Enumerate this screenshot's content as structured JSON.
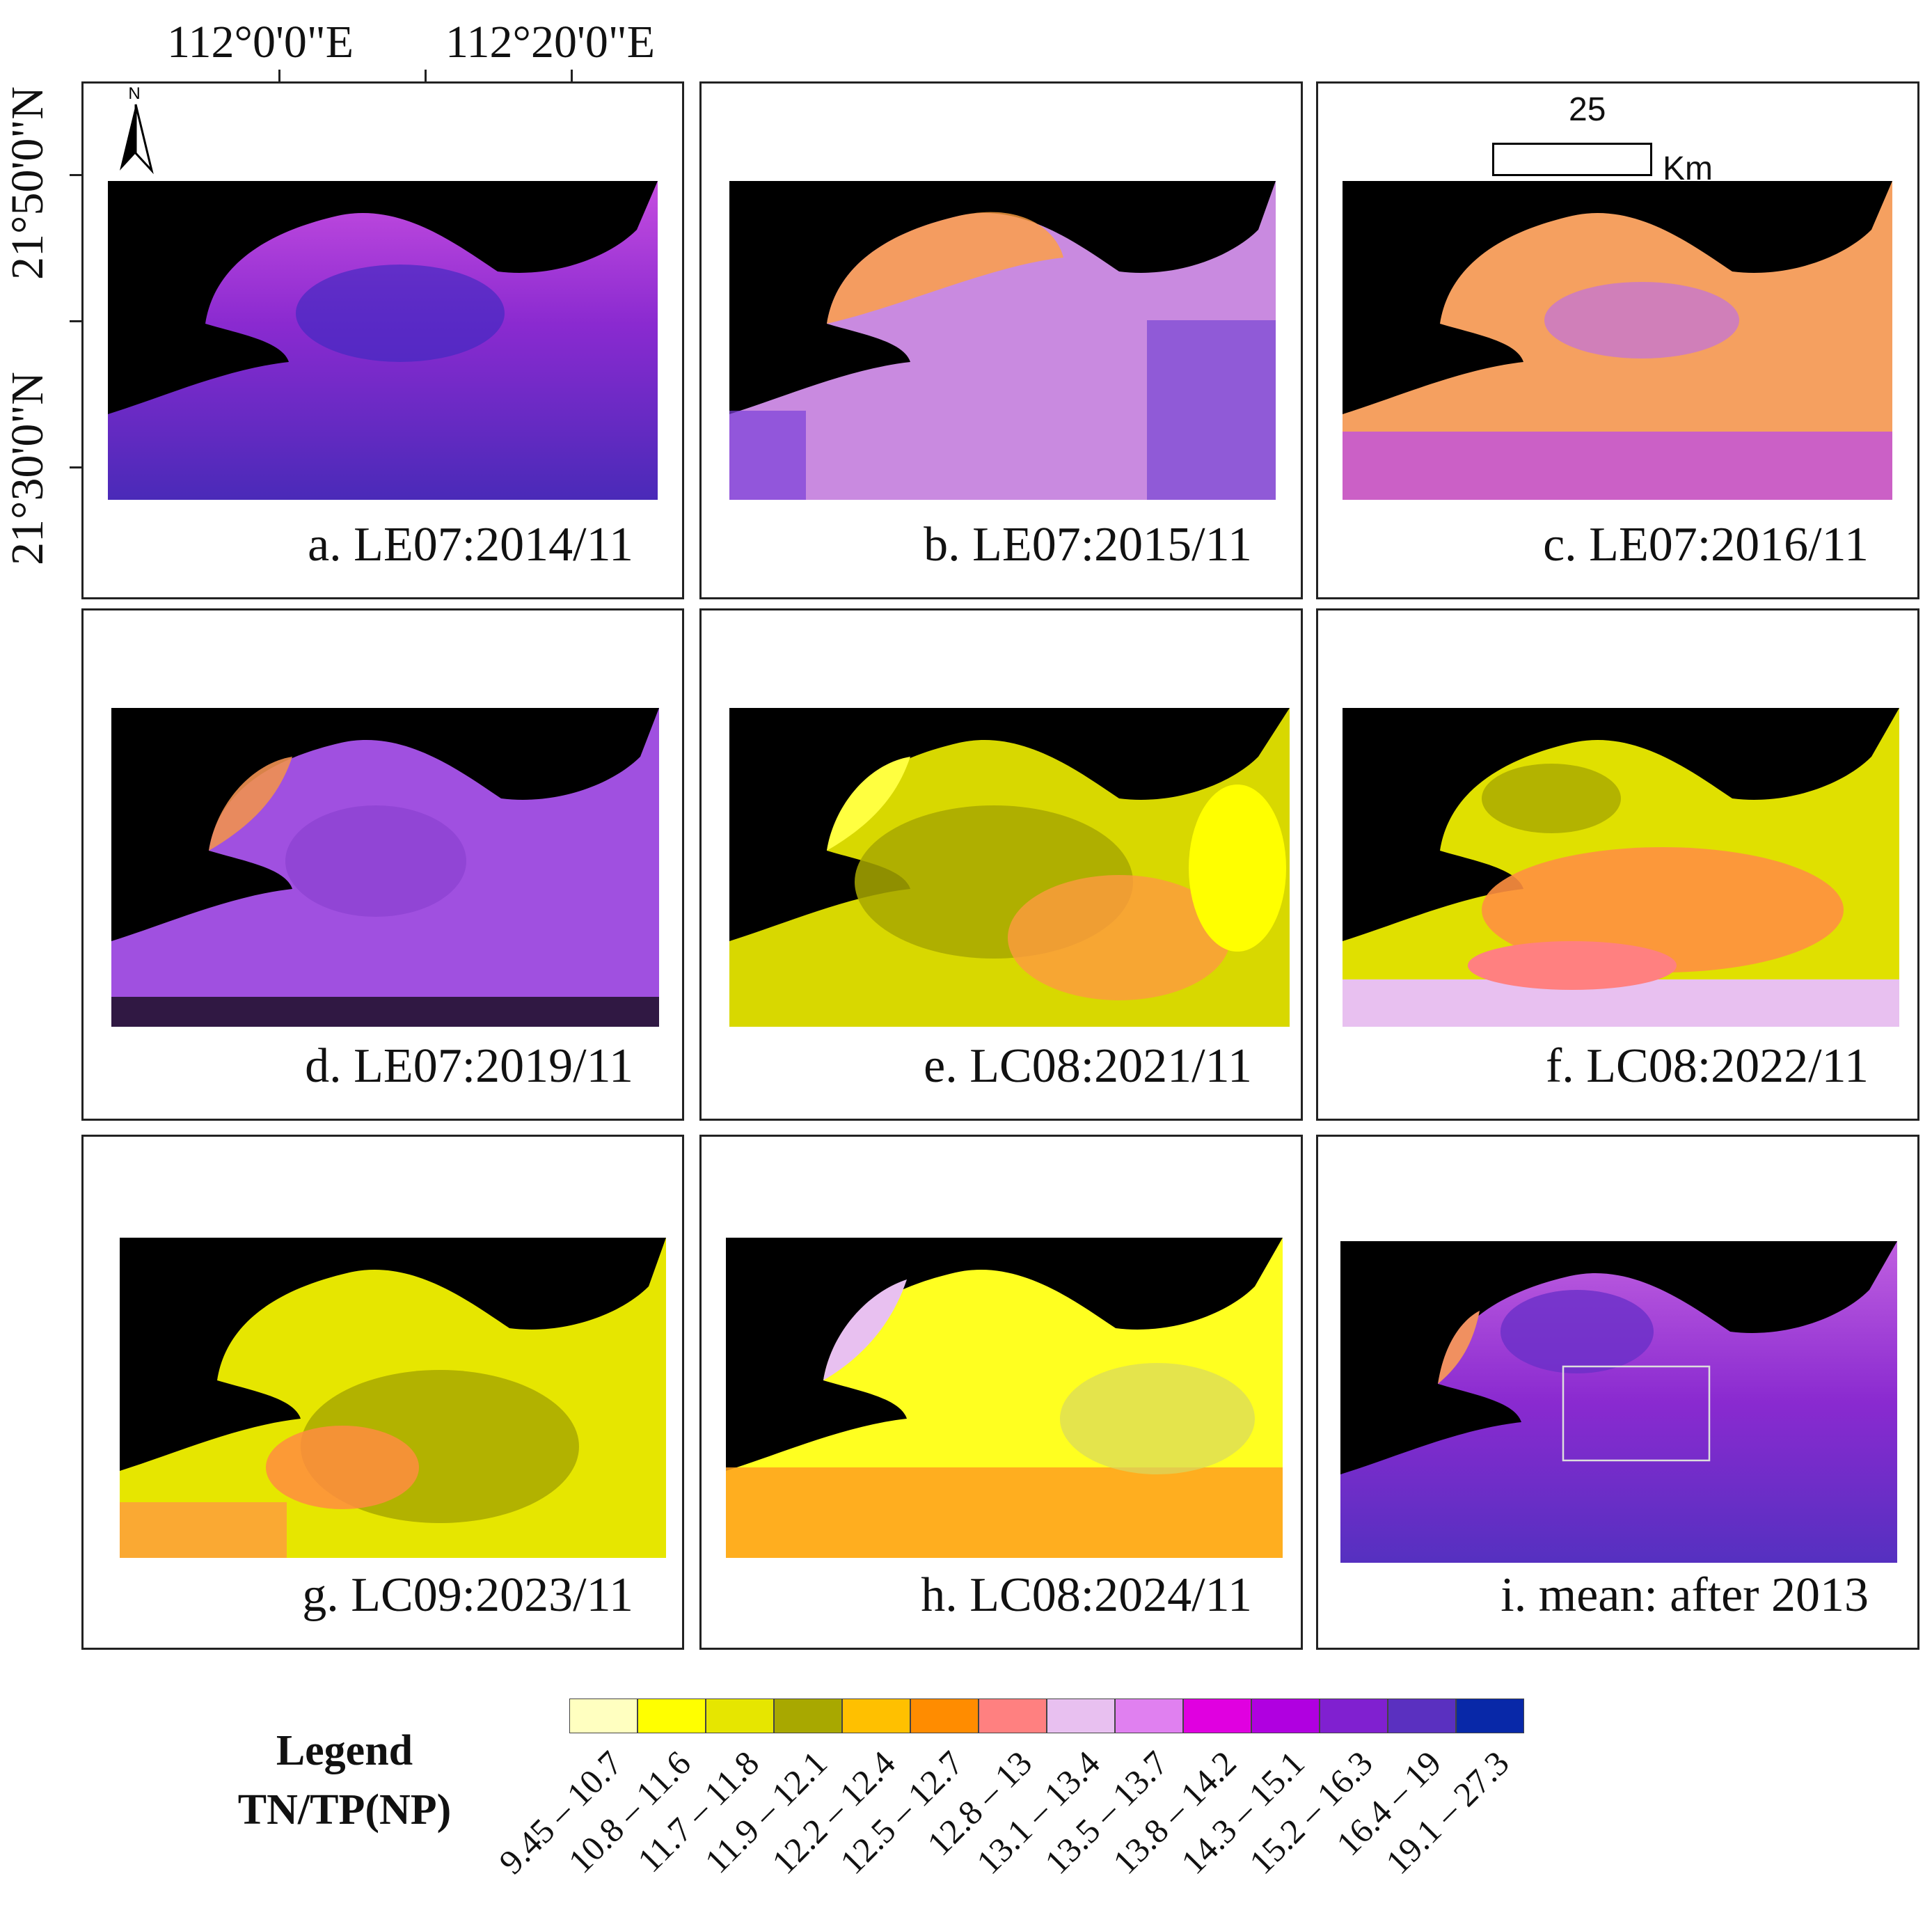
{
  "top_axis_labels": [
    "112°0'0\"E",
    "112°20'0\"E"
  ],
  "left_axis_labels": [
    "21°50'0\"N",
    "21°30'0\"N"
  ],
  "north_label": "N",
  "scalebar": {
    "value": "25",
    "unit": "Km"
  },
  "panels": [
    {
      "label": "a.  LE07:2014/11",
      "palette": "violet"
    },
    {
      "label": "b.  LE07:2015/11",
      "palette": "violet-orange"
    },
    {
      "label": "c.  LE07:2016/11",
      "palette": "orange-violet"
    },
    {
      "label": "d.  LE07:2019/11",
      "palette": "violet"
    },
    {
      "label": "e.  LC08:2021/11",
      "palette": "yellow"
    },
    {
      "label": "f.  LC08:2022/11",
      "palette": "yellow-orange"
    },
    {
      "label": "g.  LC09:2023/11",
      "palette": "yellow"
    },
    {
      "label": "h.  LC08:2024/11",
      "palette": "yellow"
    },
    {
      "label": "i.  mean: after 2013",
      "palette": "violet"
    }
  ],
  "legend": {
    "title_line1": "Legend",
    "title_line2": "TN/TP(NP)",
    "classes": [
      {
        "range": "9.45 – 10.7",
        "color": "#FFFFC0"
      },
      {
        "range": "10.8 – 11.6",
        "color": "#FFFF00"
      },
      {
        "range": "11.7 – 11.8",
        "color": "#E6E600"
      },
      {
        "range": "11.9 – 12.1",
        "color": "#A8A800"
      },
      {
        "range": "12.2 – 12.4",
        "color": "#FFC000"
      },
      {
        "range": "12.5 – 12.7",
        "color": "#FF8C00"
      },
      {
        "range": "12.8 – 13",
        "color": "#FF8080"
      },
      {
        "range": "13.1 – 13.4",
        "color": "#E8C0F0"
      },
      {
        "range": "13.5 – 13.7",
        "color": "#E080F0"
      },
      {
        "range": "13.8 – 14.2",
        "color": "#E000E0"
      },
      {
        "range": "14.3 – 15.1",
        "color": "#B000E0"
      },
      {
        "range": "15.2 – 16.3",
        "color": "#8020D0"
      },
      {
        "range": "16.4 – 19",
        "color": "#5A30C0"
      },
      {
        "range": "19.1 – 27.3",
        "color": "#0828A8"
      }
    ]
  }
}
